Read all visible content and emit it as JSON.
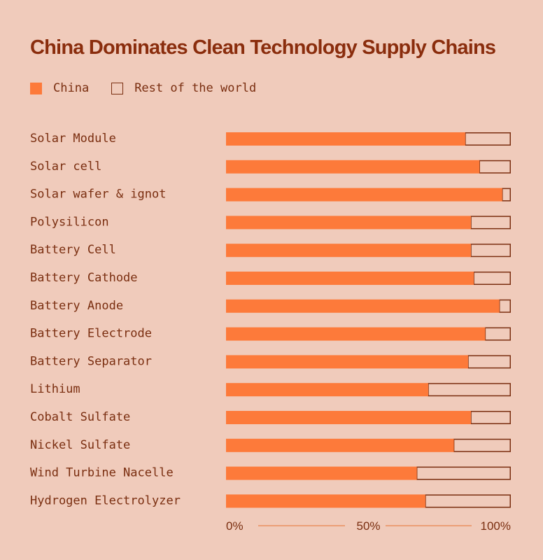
{
  "chart_data": {
    "type": "bar",
    "orientation": "horizontal",
    "stacked": true,
    "title": "China Dominates Clean Technology Supply Chains",
    "legend": [
      {
        "name": "China",
        "color": "#fd7a3a"
      },
      {
        "name": "Rest of the world",
        "color": "#f0cbbb"
      }
    ],
    "legend_position": "top-left",
    "categories": [
      "Solar Module",
      "Solar cell",
      "Solar wafer & ignot",
      "Polysilicon",
      "Battery Cell",
      "Battery Cathode",
      "Battery Anode",
      "Battery Electrode",
      "Battery Separator",
      "Lithium",
      "Cobalt Sulfate",
      "Nickel Sulfate",
      "Wind Turbine Nacelle",
      "Hydrogen Electrolyzer"
    ],
    "series": [
      {
        "name": "China",
        "values": [
          84,
          89,
          97,
          86,
          86,
          87,
          96,
          91,
          85,
          71,
          86,
          80,
          67,
          70
        ]
      },
      {
        "name": "Rest of the world",
        "values": [
          16,
          11,
          3,
          14,
          14,
          13,
          4,
          9,
          15,
          29,
          14,
          20,
          33,
          30
        ]
      }
    ],
    "xlim": [
      0,
      100
    ],
    "x_ticks": [
      "0%",
      "50%",
      "100%"
    ],
    "grid": false,
    "colors": {
      "background": "#f0cbbb",
      "china": "#fd7a3a",
      "text": "#7a2e10",
      "title": "#8a2d0d"
    }
  }
}
